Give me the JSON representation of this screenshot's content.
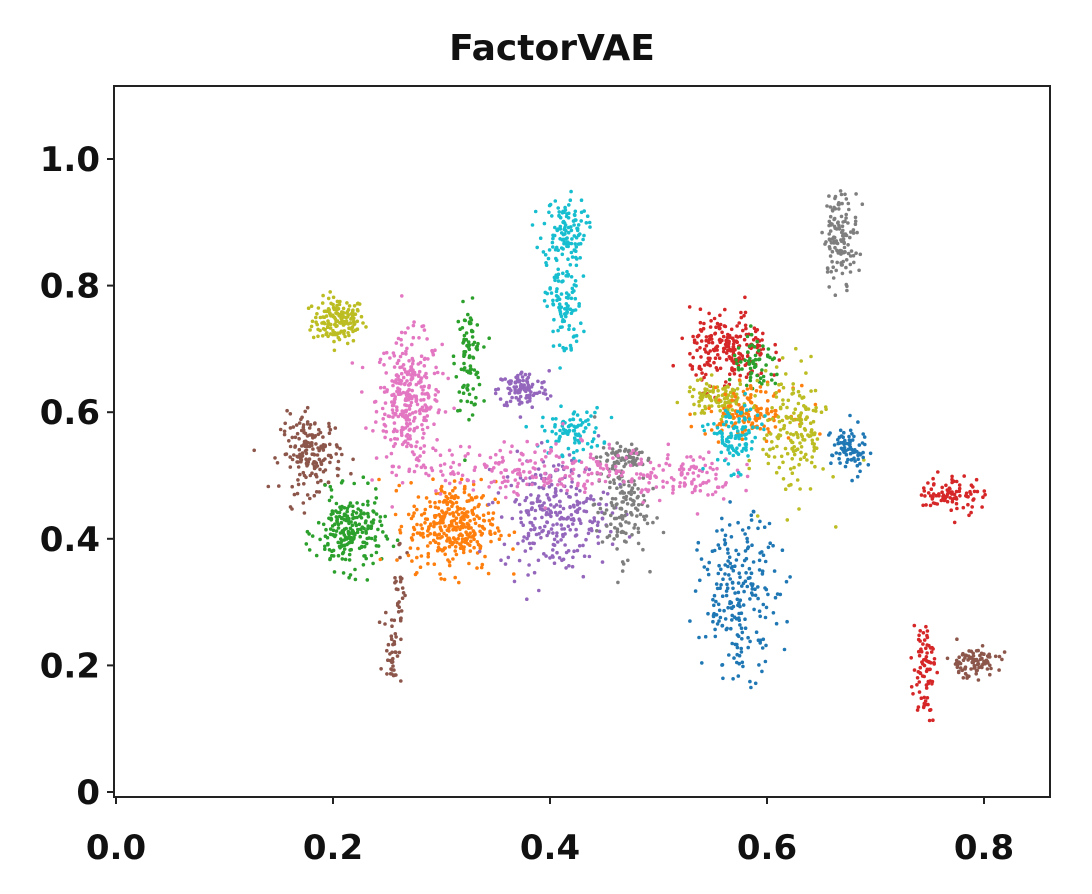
{
  "chart_data": {
    "type": "scatter",
    "title": "FactorVAE",
    "xlabel": "",
    "ylabel": "",
    "xlim": [
      0.0,
      0.9
    ],
    "ylim": [
      0.0,
      1.1
    ],
    "x_ticks": [
      {
        "value": 0.0,
        "label": "0.0"
      },
      {
        "value": 0.2,
        "label": "0.2"
      },
      {
        "value": 0.4,
        "label": "0.4"
      },
      {
        "value": 0.6,
        "label": "0.6"
      },
      {
        "value": 0.8,
        "label": "0.8"
      }
    ],
    "y_ticks": [
      {
        "value": 0.0,
        "label": "0"
      },
      {
        "value": 0.2,
        "label": "0.2"
      },
      {
        "value": 0.4,
        "label": "0.4"
      },
      {
        "value": 0.6,
        "label": "0.6"
      },
      {
        "value": 0.8,
        "label": "0.8"
      },
      {
        "value": 1.0,
        "label": "1.0"
      }
    ],
    "grid": false,
    "legend": "none",
    "colors": {
      "blue": "#1f77b4",
      "orange": "#ff7f0e",
      "green": "#2ca02c",
      "red": "#d62728",
      "purple": "#9467bd",
      "brown": "#8c564b",
      "pink": "#e377c2",
      "gray": "#7f7f7f",
      "olive": "#bcbd22",
      "cyan": "#17becf"
    },
    "clusters": [
      {
        "color": "olive",
        "cx": 0.205,
        "cy": 0.745,
        "sx": 0.012,
        "sy": 0.018,
        "n": 160
      },
      {
        "color": "pink",
        "cx": 0.27,
        "cy": 0.62,
        "sx": 0.015,
        "sy": 0.05,
        "n": 320
      },
      {
        "color": "green",
        "cx": 0.325,
        "cy": 0.685,
        "sx": 0.006,
        "sy": 0.04,
        "n": 90
      },
      {
        "color": "purple",
        "cx": 0.375,
        "cy": 0.635,
        "sx": 0.012,
        "sy": 0.015,
        "n": 110
      },
      {
        "color": "cyan",
        "cx": 0.413,
        "cy": 0.89,
        "sx": 0.01,
        "sy": 0.025,
        "n": 110
      },
      {
        "color": "cyan",
        "cx": 0.413,
        "cy": 0.77,
        "sx": 0.008,
        "sy": 0.045,
        "n": 110
      },
      {
        "color": "cyan",
        "cx": 0.42,
        "cy": 0.57,
        "sx": 0.014,
        "sy": 0.018,
        "n": 90
      },
      {
        "color": "brown",
        "cx": 0.18,
        "cy": 0.535,
        "sx": 0.014,
        "sy": 0.03,
        "n": 180
      },
      {
        "color": "green",
        "cx": 0.215,
        "cy": 0.41,
        "sx": 0.015,
        "sy": 0.03,
        "n": 230
      },
      {
        "color": "brown",
        "cx": 0.255,
        "cy": 0.23,
        "sx": 0.004,
        "sy": 0.03,
        "n": 40
      },
      {
        "color": "brown",
        "cx": 0.262,
        "cy": 0.33,
        "sx": 0.003,
        "sy": 0.04,
        "n": 25
      },
      {
        "color": "orange",
        "cx": 0.31,
        "cy": 0.42,
        "sx": 0.02,
        "sy": 0.035,
        "n": 340
      },
      {
        "color": "purple",
        "cx": 0.405,
        "cy": 0.44,
        "sx": 0.025,
        "sy": 0.045,
        "n": 270
      },
      {
        "color": "gray",
        "cx": 0.465,
        "cy": 0.45,
        "sx": 0.012,
        "sy": 0.04,
        "n": 140
      },
      {
        "color": "gray",
        "cx": 0.47,
        "cy": 0.53,
        "sx": 0.012,
        "sy": 0.01,
        "n": 60
      },
      {
        "color": "pink",
        "cx": 0.39,
        "cy": 0.51,
        "sx": 0.06,
        "sy": 0.02,
        "n": 220
      },
      {
        "color": "pink",
        "cx": 0.52,
        "cy": 0.5,
        "sx": 0.025,
        "sy": 0.02,
        "n": 100
      },
      {
        "color": "red",
        "cx": 0.565,
        "cy": 0.7,
        "sx": 0.018,
        "sy": 0.03,
        "n": 220
      },
      {
        "color": "green",
        "cx": 0.59,
        "cy": 0.67,
        "sx": 0.012,
        "sy": 0.02,
        "n": 60
      },
      {
        "color": "olive",
        "cx": 0.555,
        "cy": 0.62,
        "sx": 0.015,
        "sy": 0.015,
        "n": 110
      },
      {
        "color": "orange",
        "cx": 0.585,
        "cy": 0.6,
        "sx": 0.02,
        "sy": 0.02,
        "n": 140
      },
      {
        "color": "cyan",
        "cx": 0.57,
        "cy": 0.56,
        "sx": 0.012,
        "sy": 0.025,
        "n": 110
      },
      {
        "color": "olive",
        "cx": 0.625,
        "cy": 0.57,
        "sx": 0.015,
        "sy": 0.05,
        "n": 170
      },
      {
        "color": "blue",
        "cx": 0.675,
        "cy": 0.54,
        "sx": 0.008,
        "sy": 0.02,
        "n": 80
      },
      {
        "color": "blue",
        "cx": 0.575,
        "cy": 0.31,
        "sx": 0.018,
        "sy": 0.06,
        "n": 230
      },
      {
        "color": "gray",
        "cx": 0.668,
        "cy": 0.88,
        "sx": 0.008,
        "sy": 0.035,
        "n": 130
      },
      {
        "color": "red",
        "cx": 0.77,
        "cy": 0.47,
        "sx": 0.015,
        "sy": 0.015,
        "n": 90
      },
      {
        "color": "red",
        "cx": 0.745,
        "cy": 0.2,
        "sx": 0.005,
        "sy": 0.04,
        "n": 80
      },
      {
        "color": "brown",
        "cx": 0.79,
        "cy": 0.205,
        "sx": 0.012,
        "sy": 0.012,
        "n": 90
      }
    ]
  }
}
